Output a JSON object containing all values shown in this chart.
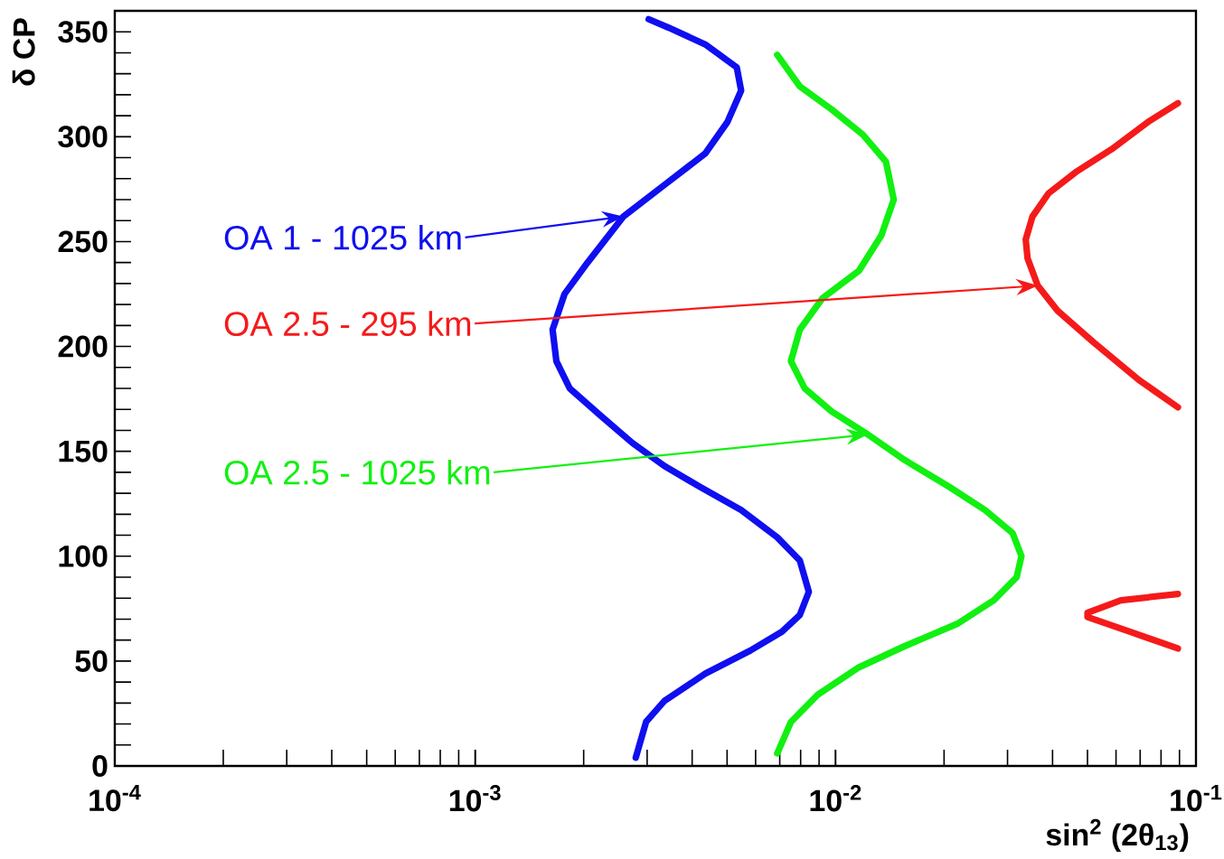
{
  "chart_data": {
    "type": "line",
    "xlabel": "sin$^{2}$ (2θ$_{13}$)",
    "ylabel": "δ CP",
    "log": "x",
    "xlim": [
      0.0001,
      0.1
    ],
    "ylim": [
      0,
      360
    ],
    "xticks": [
      {
        "value": 0.0001,
        "label": "10$^{-4}$"
      },
      {
        "value": 0.001,
        "label": "10$^{-3}$"
      },
      {
        "value": 0.01,
        "label": "10$^{-2}$"
      },
      {
        "value": 0.1,
        "label": "10$^{-1}$"
      }
    ],
    "yticks": [
      0,
      50,
      100,
      150,
      200,
      250,
      300,
      350
    ],
    "series": [
      {
        "color": "#0f0ff0",
        "x": [
          0.00279,
          0.00298,
          0.00335,
          0.00435,
          0.0058,
          0.0071,
          0.00796,
          0.00843,
          0.00796,
          0.00689,
          0.00547,
          0.00421,
          0.00335,
          0.00273,
          0.00223,
          0.00183,
          0.00168,
          0.00164,
          0.00177,
          0.00205,
          0.00258,
          0.00335,
          0.00435,
          0.00501,
          0.00547,
          0.00532,
          0.00435,
          0.00344,
          0.00303
        ],
        "values": [
          4,
          21,
          31,
          44,
          55,
          64,
          72,
          83,
          98,
          109,
          122,
          133,
          143,
          154,
          167,
          180,
          193,
          208,
          225,
          240,
          262,
          277,
          292,
          307,
          322,
          333,
          344,
          352,
          356
        ]
      },
      {
        "color": "#11f011",
        "x": [
          0.00689,
          0.00752,
          0.00893,
          0.0116,
          0.0155,
          0.0219,
          0.0275,
          0.0318,
          0.0328,
          0.031,
          0.026,
          0.0207,
          0.0155,
          0.0123,
          0.00975,
          0.00821,
          0.00752,
          0.00796,
          0.0092,
          0.0116,
          0.0134,
          0.0145,
          0.0138,
          0.0119,
          0.00975,
          0.00796,
          0.00689
        ],
        "values": [
          6,
          21,
          34,
          47,
          57,
          68,
          79,
          90,
          100,
          111,
          122,
          133,
          146,
          158,
          169,
          180,
          193,
          208,
          223,
          236,
          253,
          270,
          288,
          301,
          313,
          324,
          339
        ]
      },
      {
        "color": "#f51a1a",
        "x": [
          0.0891,
          0.0695,
          0.052,
          0.0413,
          0.0364,
          0.0341,
          0.0337,
          0.0352,
          0.039,
          0.0463,
          0.0583,
          0.0736,
          0.0891,
          null,
          0.0891,
          0.0656,
          0.05,
          0.05,
          0.0619,
          0.0891
        ],
        "values": [
          171,
          184,
          202,
          217,
          229,
          242,
          251,
          262,
          273,
          283,
          294,
          307,
          316,
          null,
          56,
          64,
          71,
          73,
          79,
          82
        ]
      }
    ],
    "annotations": [
      "OA 1 - 1025 km",
      "OA 2.5 - 1025 km",
      "OA 2.5 - 295 km"
    ]
  }
}
